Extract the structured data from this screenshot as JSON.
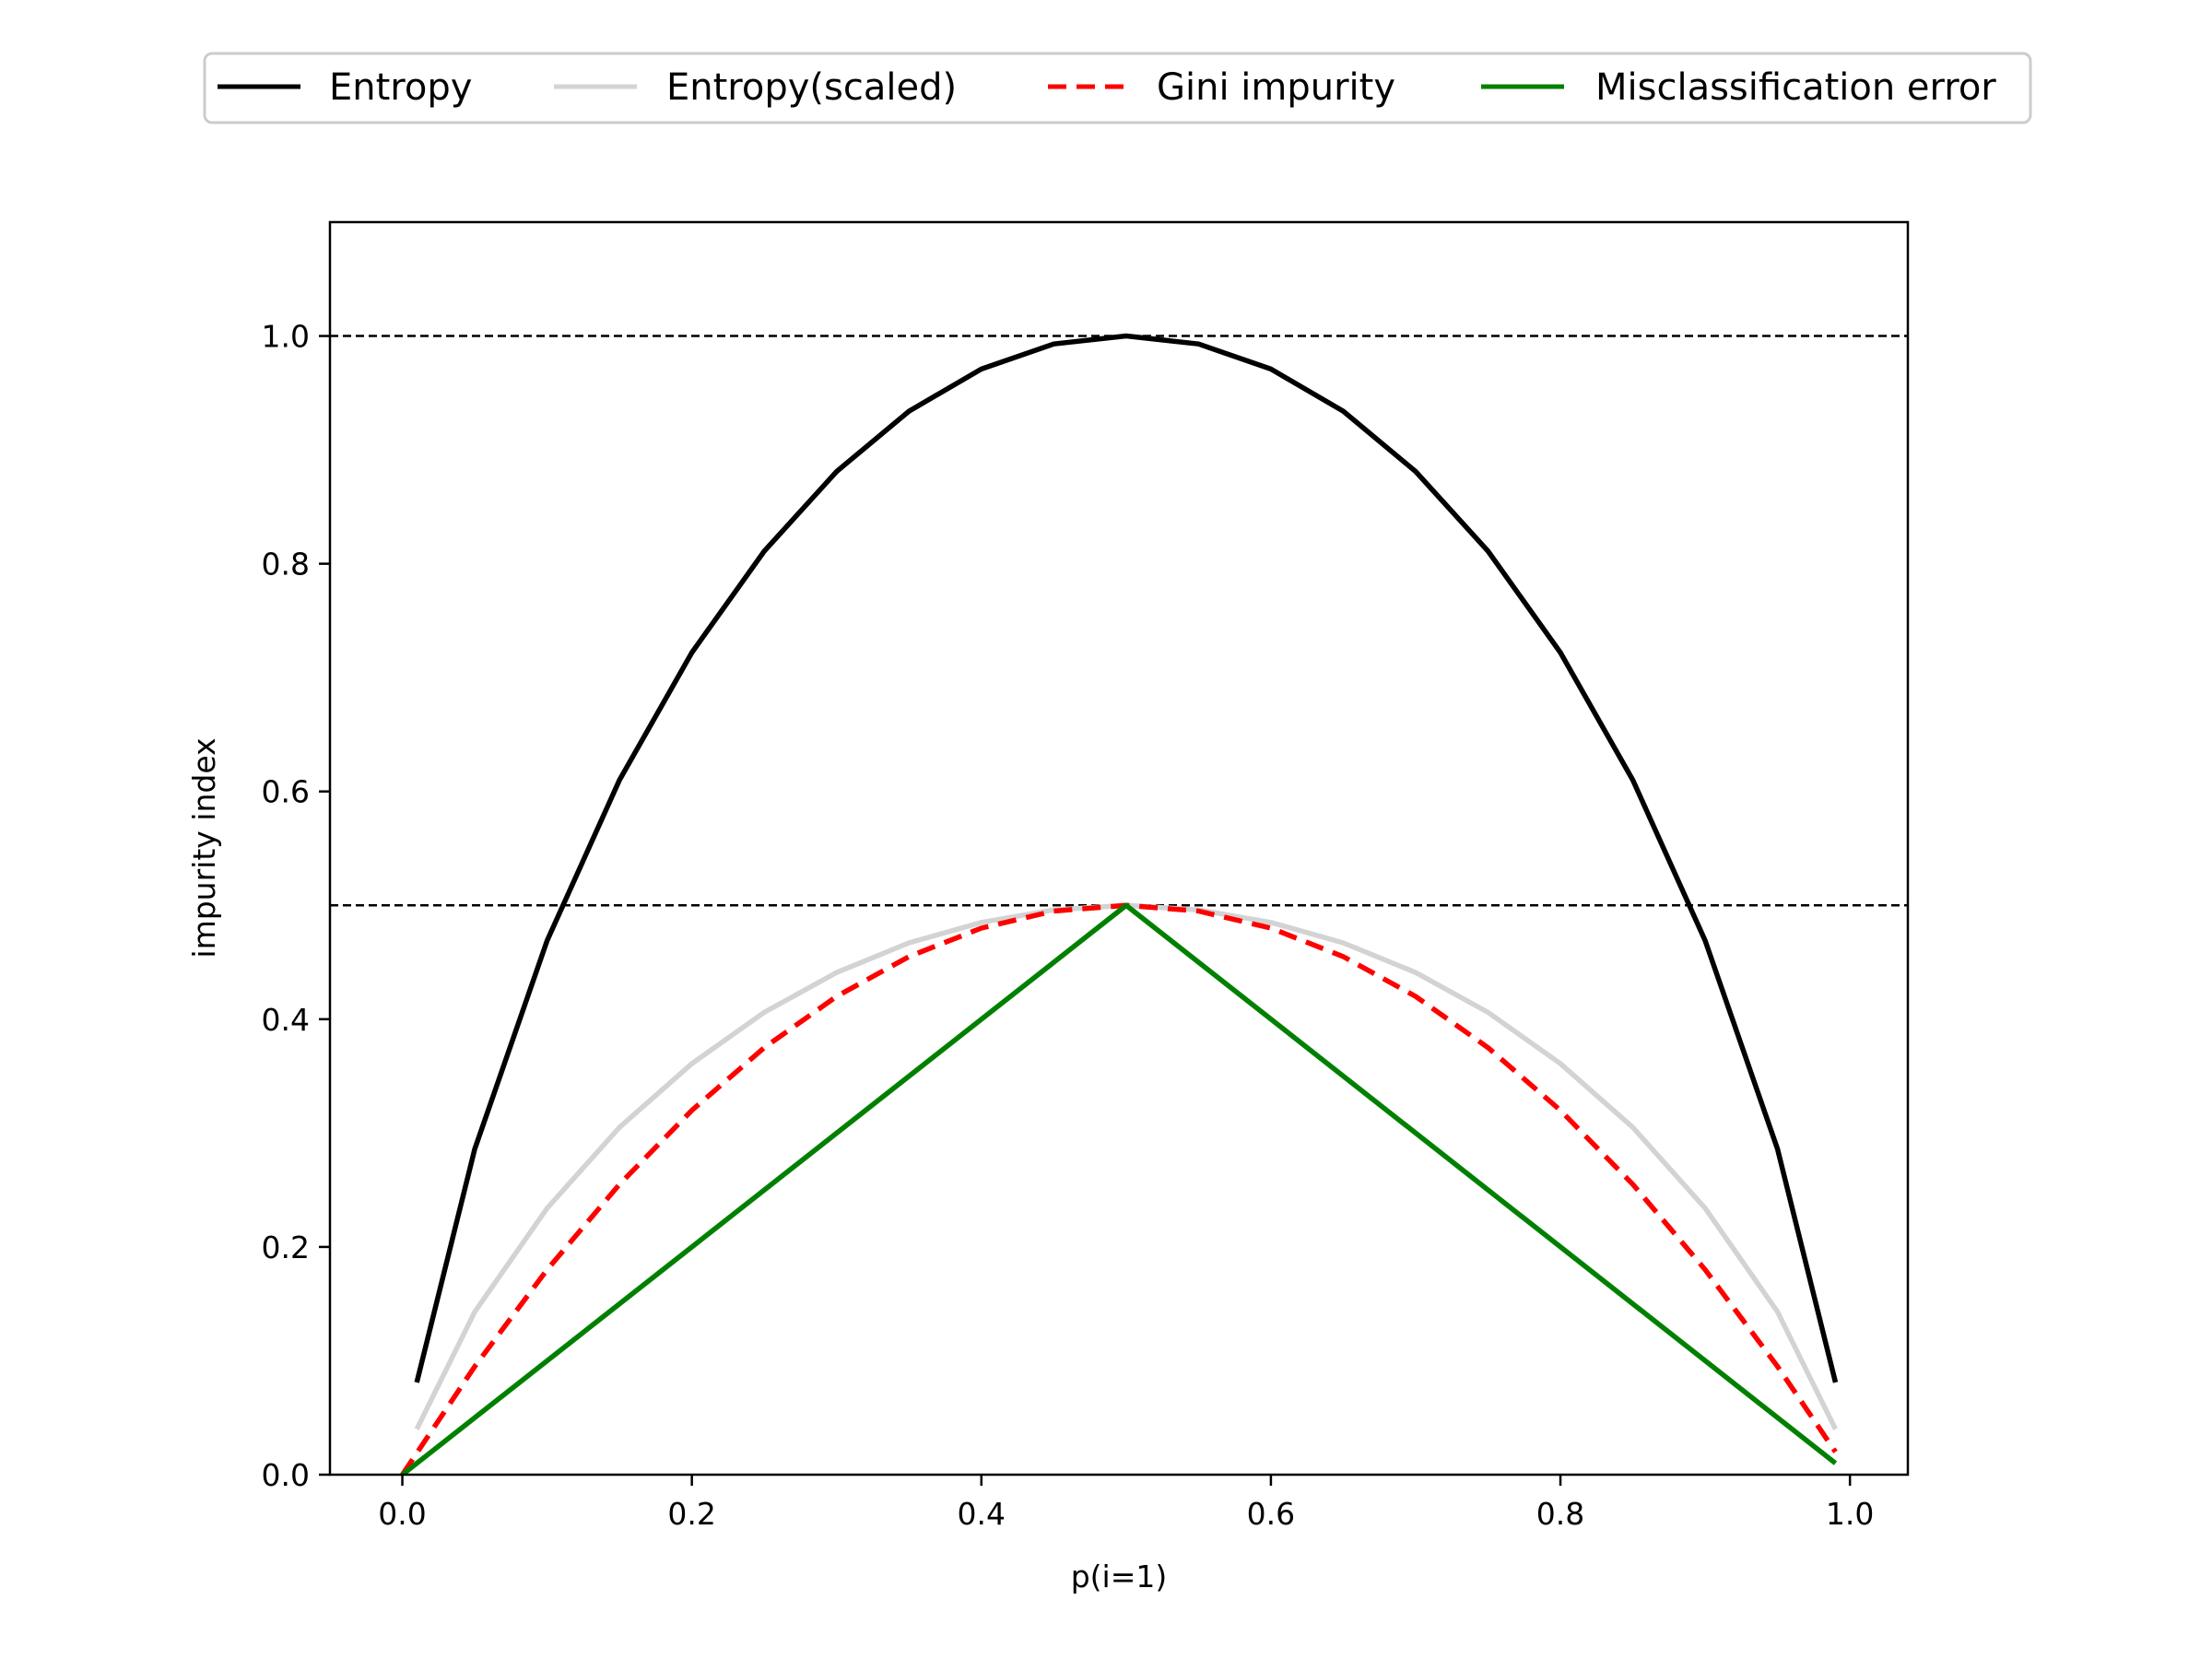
{
  "chart_data": {
    "type": "line",
    "xlabel": "p(i=1)",
    "ylabel": "impurity index",
    "xlim": [
      -0.05,
      1.04
    ],
    "ylim": [
      0.0,
      1.1
    ],
    "x_ticks": [
      "0.0",
      "0.2",
      "0.4",
      "0.6",
      "0.8",
      "1.0"
    ],
    "y_ticks": [
      "0.0",
      "0.2",
      "0.4",
      "0.6",
      "0.8",
      "1.0"
    ],
    "grid": false,
    "legend_position": "top-center, above plot",
    "reference_lines": [
      {
        "y": 1.0,
        "color": "#000000",
        "style": "dashed"
      },
      {
        "y": 0.5,
        "color": "#000000",
        "style": "dashed"
      }
    ],
    "series": [
      {
        "name": "Entropy",
        "color": "#000000",
        "style": "solid",
        "x": [
          0.01,
          0.05,
          0.1,
          0.15,
          0.2,
          0.25,
          0.3,
          0.35,
          0.4,
          0.45,
          0.5,
          0.55,
          0.6,
          0.65,
          0.7,
          0.75,
          0.8,
          0.85,
          0.9,
          0.95,
          0.99
        ],
        "y": [
          0.081,
          0.286,
          0.469,
          0.61,
          0.722,
          0.811,
          0.881,
          0.934,
          0.971,
          0.993,
          1.0,
          0.993,
          0.971,
          0.934,
          0.881,
          0.811,
          0.722,
          0.61,
          0.469,
          0.286,
          0.081
        ]
      },
      {
        "name": "Entropy(scaled)",
        "color": "#d3d3d3",
        "style": "solid",
        "x": [
          0.01,
          0.05,
          0.1,
          0.15,
          0.2,
          0.25,
          0.3,
          0.35,
          0.4,
          0.45,
          0.5,
          0.55,
          0.6,
          0.65,
          0.7,
          0.75,
          0.8,
          0.85,
          0.9,
          0.95,
          0.99
        ],
        "y": [
          0.04,
          0.143,
          0.234,
          0.305,
          0.361,
          0.406,
          0.441,
          0.467,
          0.485,
          0.496,
          0.5,
          0.496,
          0.485,
          0.467,
          0.441,
          0.406,
          0.361,
          0.305,
          0.234,
          0.143,
          0.04
        ]
      },
      {
        "name": "Gini impurity",
        "color": "#ff0000",
        "style": "dashed",
        "x": [
          0.0,
          0.05,
          0.1,
          0.15,
          0.2,
          0.25,
          0.3,
          0.35,
          0.4,
          0.45,
          0.5,
          0.55,
          0.6,
          0.65,
          0.7,
          0.75,
          0.8,
          0.85,
          0.9,
          0.95,
          0.99
        ],
        "y": [
          0.0,
          0.095,
          0.18,
          0.255,
          0.32,
          0.375,
          0.42,
          0.455,
          0.48,
          0.495,
          0.5,
          0.495,
          0.48,
          0.455,
          0.42,
          0.375,
          0.32,
          0.255,
          0.18,
          0.095,
          0.02
        ]
      },
      {
        "name": "Misclassification error",
        "color": "#008000",
        "style": "solid",
        "x": [
          0.0,
          0.5,
          0.99
        ],
        "y": [
          0.0,
          0.5,
          0.01
        ]
      }
    ]
  }
}
